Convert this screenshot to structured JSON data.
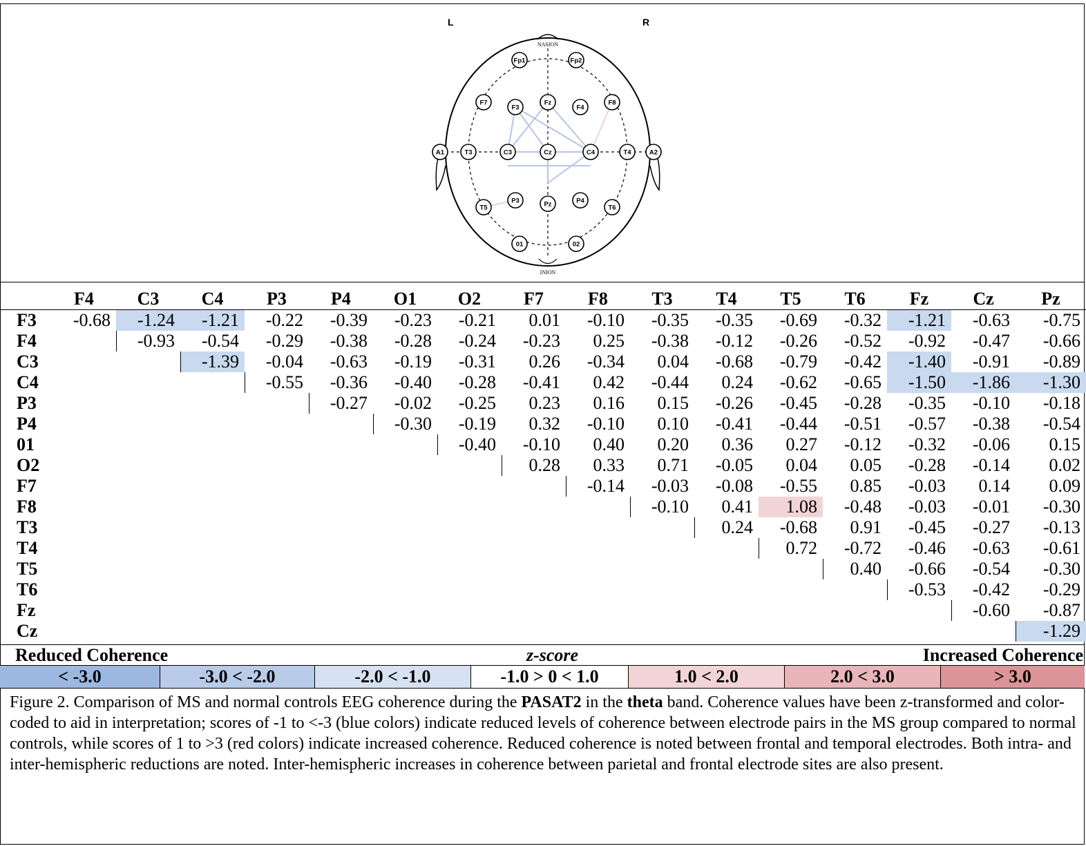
{
  "head_diagram": {
    "left_label": "L",
    "right_label": "R",
    "nasion_label": "NASION",
    "inion_label": "INION",
    "electrodes": [
      "Fp1",
      "Fp2",
      "F7",
      "F3",
      "Fz",
      "F4",
      "F8",
      "A1",
      "T3",
      "C3",
      "Cz",
      "C4",
      "T4",
      "A2",
      "T5",
      "P3",
      "Pz",
      "P4",
      "T6",
      "01",
      "02"
    ]
  },
  "matrix": {
    "columns": [
      "F4",
      "C3",
      "C4",
      "P3",
      "P4",
      "O1",
      "O2",
      "F7",
      "F8",
      "T3",
      "T4",
      "T5",
      "T6",
      "Fz",
      "Cz",
      "Pz"
    ],
    "rows": [
      {
        "label": "F3",
        "start": 0,
        "values": [
          "-0.68",
          "-1.24",
          "-1.21",
          "-0.22",
          "-0.39",
          "-0.23",
          "-0.21",
          "0.01",
          "-0.10",
          "-0.35",
          "-0.35",
          "-0.69",
          "-0.32",
          "-1.21",
          "-0.63",
          "-0.75"
        ],
        "highlight": {
          "1": "reduced",
          "2": "reduced",
          "13": "reduced"
        }
      },
      {
        "label": "F4",
        "start": 1,
        "values": [
          "-0.93",
          "-0.54",
          "-0.29",
          "-0.38",
          "-0.28",
          "-0.24",
          "-0.23",
          "0.25",
          "-0.38",
          "-0.12",
          "-0.26",
          "-0.52",
          "-0.92",
          "-0.47",
          "-0.66"
        ],
        "highlight": {}
      },
      {
        "label": "C3",
        "start": 2,
        "values": [
          "-1.39",
          "-0.04",
          "-0.63",
          "-0.19",
          "-0.31",
          "0.26",
          "-0.34",
          "0.04",
          "-0.68",
          "-0.79",
          "-0.42",
          "-1.40",
          "-0.91",
          "-0.89"
        ],
        "highlight": {
          "2": "reduced",
          "13": "reduced"
        }
      },
      {
        "label": "C4",
        "start": 3,
        "values": [
          "-0.55",
          "-0.36",
          "-0.40",
          "-0.28",
          "-0.41",
          "0.42",
          "-0.44",
          "0.24",
          "-0.62",
          "-0.65",
          "-1.50",
          "-1.86",
          "-1.30"
        ],
        "highlight": {
          "13": "reduced",
          "14": "reduced",
          "15": "reduced"
        }
      },
      {
        "label": "P3",
        "start": 4,
        "values": [
          "-0.27",
          "-0.02",
          "-0.25",
          "0.23",
          "0.16",
          "0.15",
          "-0.26",
          "-0.45",
          "-0.28",
          "-0.35",
          "-0.10",
          "-0.18"
        ],
        "highlight": {}
      },
      {
        "label": "P4",
        "start": 5,
        "values": [
          "-0.30",
          "-0.19",
          "0.32",
          "-0.10",
          "0.10",
          "-0.41",
          "-0.44",
          "-0.51",
          "-0.57",
          "-0.38",
          "-0.54"
        ],
        "highlight": {}
      },
      {
        "label": "01",
        "start": 6,
        "values": [
          "-0.40",
          "-0.10",
          "0.40",
          "0.20",
          "0.36",
          "0.27",
          "-0.12",
          "-0.32",
          "-0.06",
          "0.15"
        ],
        "highlight": {}
      },
      {
        "label": "O2",
        "start": 7,
        "values": [
          "0.28",
          "0.33",
          "0.71",
          "-0.05",
          "0.04",
          "0.05",
          "-0.28",
          "-0.14",
          "0.02"
        ],
        "highlight": {}
      },
      {
        "label": "F7",
        "start": 8,
        "values": [
          "-0.14",
          "-0.03",
          "-0.08",
          "-0.55",
          "0.85",
          "-0.03",
          "0.14",
          "0.09"
        ],
        "highlight": {}
      },
      {
        "label": "F8",
        "start": 9,
        "values": [
          "-0.10",
          "0.41",
          "1.08",
          "-0.48",
          "-0.03",
          "-0.01",
          "-0.30"
        ],
        "highlight": {
          "11": "increased"
        }
      },
      {
        "label": "T3",
        "start": 10,
        "values": [
          "0.24",
          "-0.68",
          "0.91",
          "-0.45",
          "-0.27",
          "-0.13"
        ],
        "highlight": {}
      },
      {
        "label": "T4",
        "start": 11,
        "values": [
          "0.72",
          "-0.72",
          "-0.46",
          "-0.63",
          "-0.61"
        ],
        "highlight": {}
      },
      {
        "label": "T5",
        "start": 12,
        "values": [
          "0.40",
          "-0.66",
          "-0.54",
          "-0.30"
        ],
        "highlight": {}
      },
      {
        "label": "T6",
        "start": 13,
        "values": [
          "-0.53",
          "-0.42",
          "-0.29"
        ],
        "highlight": {}
      },
      {
        "label": "Fz",
        "start": 14,
        "values": [
          "-0.60",
          "-0.87"
        ],
        "highlight": {}
      },
      {
        "label": "Cz",
        "start": 15,
        "values": [
          "-1.29"
        ],
        "highlight": {
          "15": "reduced"
        }
      }
    ]
  },
  "legend": {
    "left_title": "Reduced Coherence",
    "center_title": "z-score",
    "right_title": "Increased Coherence",
    "bins": [
      {
        "label": "< -3.0",
        "color": "#9db8e0"
      },
      {
        "label": "-3.0 < -2.0",
        "color": "#b8cbe8"
      },
      {
        "label": "-2.0 < -1.0",
        "color": "#d6e1f2"
      },
      {
        "label": "-1.0 > 0 < 1.0",
        "color": "#ffffff"
      },
      {
        "label": "1.0 < 2.0",
        "color": "#f2d4d6"
      },
      {
        "label": "2.0 < 3.0",
        "color": "#e9b5b8"
      },
      {
        "label": "> 3.0",
        "color": "#dc9498"
      }
    ]
  },
  "caption": {
    "part1": "Figure 2. Comparison of MS and normal controls EEG coherence during the ",
    "task": "PASAT2",
    "part2": " in the ",
    "band": "theta",
    "part3": " band.  Coherence values have been z-transformed and color-coded to aid in interpretation; scores of -1 to <-3 (blue colors) indicate reduced levels of coherence between electrode pairs in the MS group compared to normal controls, while scores of 1 to >3 (red colors) indicate increased coherence. Reduced coherence is noted between frontal and temporal electrodes. Both intra- and inter-hemispheric reductions are noted. Inter-hemispheric increases in coherence between parietal and frontal electrode sites are also present."
  },
  "colors": {
    "reduced_cell": "#c9daf0",
    "increased_cell": "#f2d4d6",
    "connection_line": "#b8c4e8"
  }
}
